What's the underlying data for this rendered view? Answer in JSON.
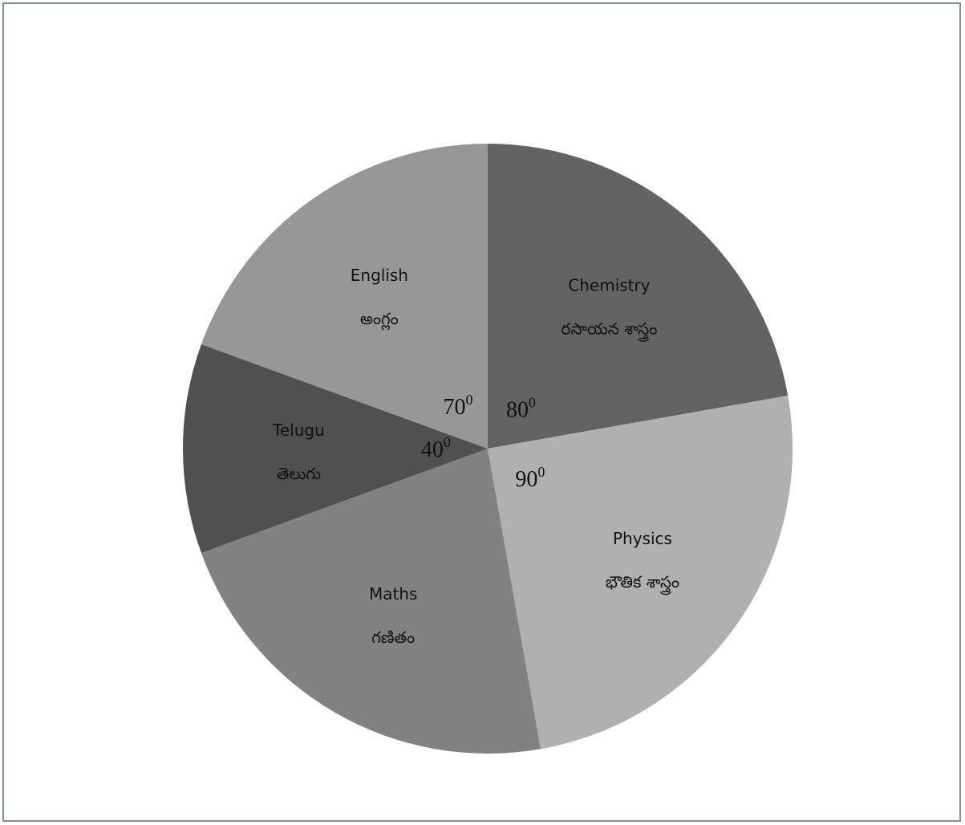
{
  "chart_data": {
    "type": "pie",
    "unit": "degrees",
    "slices": [
      {
        "label": "Chemistry",
        "label_te": "రసాయన శాస్త్రం",
        "value": 80,
        "degree_text": "80",
        "degree_sup": "0",
        "color": "#636363"
      },
      {
        "label": "Physics",
        "label_te": "భౌతిక శాస్త్రం",
        "value": 90,
        "degree_text": "90",
        "degree_sup": "0",
        "color": "#b0b0b0"
      },
      {
        "label": "Maths",
        "label_te": "గణితం",
        "value": 80,
        "degree_text": "",
        "degree_sup": "",
        "color": "#828282"
      },
      {
        "label": "Telugu",
        "label_te": "తెలుగు",
        "value": 40,
        "degree_text": "40",
        "degree_sup": "0",
        "color": "#505050"
      },
      {
        "label": "English",
        "label_te": "అంగ్లం",
        "value": 70,
        "degree_text": "70",
        "degree_sup": "0",
        "color": "#979797"
      }
    ],
    "start_angle": 0,
    "direction": "clockwise",
    "legend": "none"
  }
}
